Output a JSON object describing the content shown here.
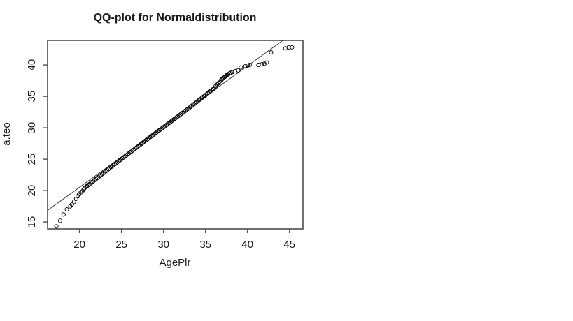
{
  "page": {
    "background": "#ffffff"
  },
  "chart_data": {
    "type": "scatter",
    "title": "QQ-plot for Normaldistribution",
    "xlabel": "AgePlr",
    "ylabel": "a.teo",
    "xticks": [
      20,
      25,
      30,
      35,
      40,
      45
    ],
    "yticks": [
      15,
      20,
      25,
      30,
      35,
      40
    ],
    "xlim": [
      16.2,
      46.6
    ],
    "ylim": [
      13.9,
      43.9
    ],
    "grid": false,
    "legend": null,
    "marker": "open-circle",
    "colors": {
      "points": "#000000",
      "line": "#333333",
      "axis": "#4d4d4d",
      "text": "#1a1a1a",
      "background": "#ffffff"
    },
    "reference_line": {
      "type": "qqline",
      "x1": 16.25,
      "y1": 16.9,
      "x2": 44.2,
      "y2": 43.9
    },
    "points": [
      [
        17.25,
        14.3
      ],
      [
        17.7,
        15.2
      ],
      [
        18.1,
        16.2
      ],
      [
        18.5,
        17.0
      ],
      [
        18.9,
        17.5
      ],
      [
        19.1,
        17.8
      ],
      [
        19.35,
        18.2
      ],
      [
        19.6,
        18.7
      ],
      [
        19.8,
        19.1
      ],
      [
        19.95,
        19.4
      ],
      [
        20.15,
        19.7
      ],
      [
        20.35,
        19.9
      ],
      [
        20.5,
        20.15
      ],
      [
        20.6,
        20.4
      ],
      [
        20.75,
        20.56
      ],
      [
        20.9,
        20.72
      ],
      [
        21.05,
        20.88
      ],
      [
        21.2,
        21.03
      ],
      [
        21.35,
        21.19
      ],
      [
        21.5,
        21.35
      ],
      [
        21.65,
        21.51
      ],
      [
        21.8,
        21.67
      ],
      [
        21.95,
        21.83
      ],
      [
        22.1,
        21.99
      ],
      [
        22.25,
        22.15
      ],
      [
        22.4,
        22.31
      ],
      [
        22.55,
        22.46
      ],
      [
        22.7,
        22.62
      ],
      [
        22.85,
        22.78
      ],
      [
        23,
        22.94
      ],
      [
        23.15,
        23.1
      ],
      [
        23.3,
        23.26
      ],
      [
        23.45,
        23.42
      ],
      [
        23.6,
        23.58
      ],
      [
        23.75,
        23.74
      ],
      [
        23.9,
        23.89
      ],
      [
        24.05,
        24.05
      ],
      [
        24.2,
        24.21
      ],
      [
        24.35,
        24.36
      ],
      [
        24.5,
        24.51
      ],
      [
        24.65,
        24.67
      ],
      [
        24.8,
        24.82
      ],
      [
        24.95,
        24.97
      ],
      [
        25.1,
        25.13
      ],
      [
        25.25,
        25.28
      ],
      [
        25.4,
        25.44
      ],
      [
        25.55,
        25.59
      ],
      [
        25.7,
        25.74
      ],
      [
        25.85,
        25.9
      ],
      [
        26,
        26.05
      ],
      [
        26.15,
        26.2
      ],
      [
        26.3,
        26.36
      ],
      [
        26.45,
        26.51
      ],
      [
        26.6,
        26.67
      ],
      [
        26.75,
        26.82
      ],
      [
        26.9,
        26.97
      ],
      [
        27.05,
        27.13
      ],
      [
        27.2,
        27.28
      ],
      [
        27.35,
        27.43
      ],
      [
        27.5,
        27.59
      ],
      [
        27.65,
        27.74
      ],
      [
        27.8,
        27.9
      ],
      [
        27.95,
        28.05
      ],
      [
        28.1,
        28.2
      ],
      [
        28.25,
        28.35
      ],
      [
        28.4,
        28.5
      ],
      [
        28.55,
        28.65
      ],
      [
        28.7,
        28.8
      ],
      [
        28.85,
        28.95
      ],
      [
        29,
        29.1
      ],
      [
        29.15,
        29.25
      ],
      [
        29.3,
        29.4
      ],
      [
        29.45,
        29.55
      ],
      [
        29.6,
        29.7
      ],
      [
        29.75,
        29.85
      ],
      [
        29.9,
        30
      ],
      [
        30.05,
        30.15
      ],
      [
        30.2,
        30.3
      ],
      [
        30.35,
        30.45
      ],
      [
        30.5,
        30.6
      ],
      [
        30.65,
        30.75
      ],
      [
        30.8,
        30.9
      ],
      [
        30.95,
        31.05
      ],
      [
        31.1,
        31.2
      ],
      [
        31.25,
        31.35
      ],
      [
        31.4,
        31.5
      ],
      [
        31.55,
        31.65
      ],
      [
        31.7,
        31.8
      ],
      [
        31.85,
        31.95
      ],
      [
        32,
        32.1
      ],
      [
        32.15,
        32.25
      ],
      [
        32.3,
        32.4
      ],
      [
        32.45,
        32.55
      ],
      [
        32.6,
        32.7
      ],
      [
        32.75,
        32.85
      ],
      [
        32.9,
        33
      ],
      [
        33.05,
        33.15
      ],
      [
        33.2,
        33.31
      ],
      [
        33.35,
        33.47
      ],
      [
        33.5,
        33.63
      ],
      [
        33.65,
        33.78
      ],
      [
        33.8,
        33.94
      ],
      [
        33.95,
        34.1
      ],
      [
        34.1,
        34.26
      ],
      [
        34.25,
        34.41
      ],
      [
        34.4,
        34.57
      ],
      [
        34.55,
        34.73
      ],
      [
        34.7,
        34.89
      ],
      [
        34.85,
        35.04
      ],
      [
        35,
        35.2
      ],
      [
        35.15,
        35.36
      ],
      [
        35.3,
        35.52
      ],
      [
        35.45,
        35.67
      ],
      [
        35.6,
        35.83
      ],
      [
        35.75,
        35.99
      ],
      [
        35.9,
        36.15
      ],
      [
        36.05,
        36.3
      ],
      [
        36.2,
        36.6
      ],
      [
        36.4,
        36.9
      ],
      [
        36.55,
        37.1
      ],
      [
        36.7,
        37.35
      ],
      [
        36.85,
        37.55
      ],
      [
        36.95,
        37.7
      ],
      [
        37.05,
        37.85
      ],
      [
        37.15,
        37.95
      ],
      [
        37.3,
        38.1
      ],
      [
        37.45,
        38.25
      ],
      [
        37.55,
        38.4
      ],
      [
        37.7,
        38.5
      ],
      [
        37.85,
        38.65
      ],
      [
        38,
        38.75
      ],
      [
        38.2,
        38.85
      ],
      [
        38.5,
        39
      ],
      [
        38.9,
        39.15
      ],
      [
        39.2,
        39.6
      ],
      [
        39.75,
        39.8
      ],
      [
        40,
        39.9
      ],
      [
        40.25,
        40
      ],
      [
        41.3,
        40
      ],
      [
        41.7,
        40.1
      ],
      [
        42,
        40.2
      ],
      [
        42.3,
        40.4
      ],
      [
        42.8,
        42
      ],
      [
        44.5,
        42.65
      ],
      [
        44.9,
        42.8
      ],
      [
        45.3,
        42.8
      ]
    ]
  }
}
